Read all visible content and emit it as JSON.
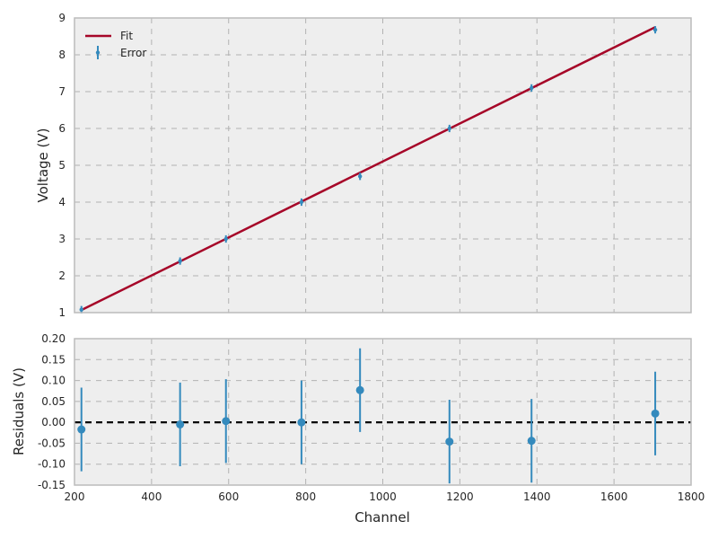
{
  "chart_data": [
    {
      "type": "line",
      "panel": "top",
      "xlabel": "",
      "ylabel": "Voltage (V)",
      "xlim": [
        200,
        1800
      ],
      "ylim": [
        1,
        9
      ],
      "xticks": [
        200,
        400,
        600,
        800,
        1000,
        1200,
        1400,
        1600,
        1800
      ],
      "yticks": [
        1,
        2,
        3,
        4,
        5,
        6,
        7,
        8,
        9
      ],
      "x_tick_labels_shown": false,
      "grid": true,
      "legend": {
        "placement": "top-left",
        "entries": [
          "Fit",
          "Error"
        ]
      },
      "series": [
        {
          "name": "Fit",
          "kind": "line",
          "color": "#A60628",
          "x": [
            218,
            1707
          ],
          "y": [
            1.07,
            8.75
          ]
        },
        {
          "name": "Error",
          "kind": "errorbar",
          "color": "#348ABD",
          "x": [
            218,
            474,
            593,
            789,
            941,
            1173,
            1386,
            1707
          ],
          "y": [
            1.08,
            2.4,
            3.0,
            4.0,
            4.7,
            6.0,
            7.1,
            8.68
          ],
          "yerr": [
            0.1,
            0.1,
            0.1,
            0.1,
            0.1,
            0.1,
            0.1,
            0.1
          ]
        }
      ]
    },
    {
      "type": "scatter",
      "panel": "bottom",
      "xlabel": "Channel",
      "ylabel": "Residuals (V)",
      "xlim": [
        200,
        1800
      ],
      "ylim": [
        -0.15,
        0.2
      ],
      "xticks": [
        200,
        400,
        600,
        800,
        1000,
        1200,
        1400,
        1600,
        1800
      ],
      "yticks": [
        "-0.15",
        "-0.10",
        "-0.05",
        "0.00",
        "0.05",
        "0.10",
        "0.15",
        "0.20"
      ],
      "grid": true,
      "reference_line": {
        "y": 0,
        "style": "dashed",
        "color": "#000000"
      },
      "series": [
        {
          "kind": "errorbar",
          "color": "#348ABD",
          "x": [
            218,
            474,
            593,
            789,
            941,
            1173,
            1386,
            1707
          ],
          "y": [
            -0.017,
            -0.005,
            0.003,
            0.0,
            0.077,
            -0.046,
            -0.044,
            0.021
          ],
          "yerr": [
            0.1,
            0.1,
            0.1,
            0.1,
            0.1,
            0.1,
            0.1,
            0.1
          ]
        }
      ]
    }
  ],
  "colors": {
    "background": "#EEEEEE",
    "frame": "#BCBCBC",
    "grid": "#B2B2B2",
    "text": "#262626"
  }
}
